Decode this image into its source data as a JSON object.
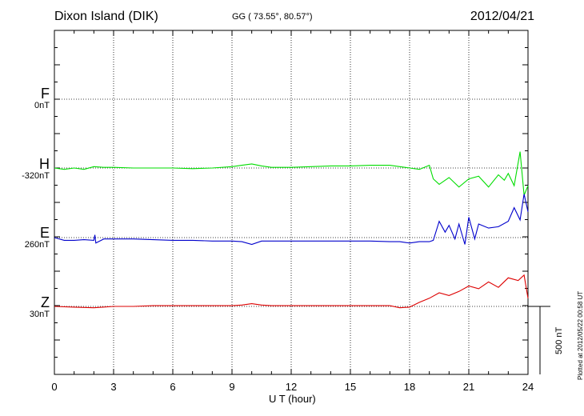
{
  "header": {
    "station": "Dixon Island (DIK)",
    "coordinates": "GG ( 73.55°,  80.57°)",
    "date": "2012/04/21"
  },
  "plotted_note": "Plotted at 2012/05/22 00:58 UT",
  "scale_bar_label": "500 nT",
  "channels": [
    {
      "name": "F",
      "scale": "0nT",
      "color": "#ffa500"
    },
    {
      "name": "H",
      "scale": "-320nT",
      "color": "#00dd00"
    },
    {
      "name": "E",
      "scale": "260nT",
      "color": "#0000cc"
    },
    {
      "name": "Z",
      "scale": "30nT",
      "color": "#dd0000"
    }
  ],
  "chart_data": {
    "type": "line",
    "xlabel": "U T (hour)",
    "xlim": [
      0,
      24
    ],
    "xticks": [
      "0",
      "3",
      "6",
      "9",
      "12",
      "15",
      "18",
      "21",
      "24"
    ],
    "grid": true,
    "scale_bar_nT": 500,
    "series": [
      {
        "name": "F",
        "color": "#ffa500",
        "x": [],
        "y": []
      },
      {
        "name": "H",
        "color": "#00dd00",
        "x": [
          0,
          0.5,
          1,
          1.5,
          2,
          2.5,
          3,
          4,
          5,
          6,
          7,
          8,
          9,
          9.5,
          10,
          10.5,
          11,
          12,
          13,
          14,
          15,
          16,
          17,
          17.5,
          18,
          18.5,
          19,
          19.2,
          19.5,
          20,
          20.5,
          21,
          21.5,
          22,
          22.5,
          22.8,
          23,
          23.3,
          23.6,
          23.8,
          24
        ],
        "y": [
          0,
          -10,
          0,
          -10,
          10,
          5,
          5,
          0,
          0,
          0,
          -5,
          0,
          10,
          20,
          30,
          15,
          5,
          5,
          10,
          15,
          15,
          20,
          20,
          10,
          0,
          -10,
          20,
          -80,
          -120,
          -70,
          -140,
          -80,
          -60,
          -140,
          -50,
          -90,
          -40,
          -130,
          120,
          -200,
          -130
        ]
      },
      {
        "name": "E",
        "color": "#0000cc",
        "x": [
          0,
          0.5,
          1,
          1.5,
          2,
          2.05,
          2.1,
          2.5,
          3,
          4,
          5,
          6,
          7,
          8,
          9,
          9.5,
          10,
          10.5,
          11,
          12,
          13,
          14,
          15,
          16,
          17,
          17.5,
          18,
          18.5,
          19,
          19.2,
          19.5,
          19.8,
          20,
          20.3,
          20.5,
          20.8,
          21,
          21.3,
          21.5,
          22,
          22.5,
          23,
          23.3,
          23.6,
          23.8,
          24
        ],
        "y": [
          0,
          -20,
          -20,
          -15,
          -20,
          20,
          -40,
          -10,
          -10,
          -10,
          -15,
          -20,
          -20,
          -25,
          -25,
          -30,
          -50,
          -25,
          -25,
          -25,
          -25,
          -25,
          -25,
          -25,
          -30,
          -30,
          -40,
          -30,
          -30,
          -20,
          120,
          40,
          90,
          -10,
          100,
          -50,
          150,
          -10,
          100,
          70,
          80,
          120,
          220,
          130,
          320,
          190
        ]
      },
      {
        "name": "Z",
        "color": "#dd0000",
        "x": [
          0,
          1,
          2,
          3,
          4,
          5,
          6,
          7,
          8,
          9,
          9.5,
          10,
          10.5,
          11,
          12,
          13,
          14,
          15,
          16,
          17,
          17.5,
          18,
          18.5,
          19,
          19.5,
          20,
          20.5,
          21,
          21.5,
          22,
          22.5,
          23,
          23.5,
          23.8,
          24
        ],
        "y": [
          0,
          -5,
          -10,
          0,
          0,
          5,
          5,
          5,
          5,
          5,
          10,
          20,
          10,
          5,
          5,
          5,
          5,
          5,
          5,
          5,
          -10,
          -5,
          30,
          60,
          100,
          80,
          110,
          150,
          130,
          180,
          140,
          210,
          190,
          230,
          60
        ]
      }
    ]
  }
}
